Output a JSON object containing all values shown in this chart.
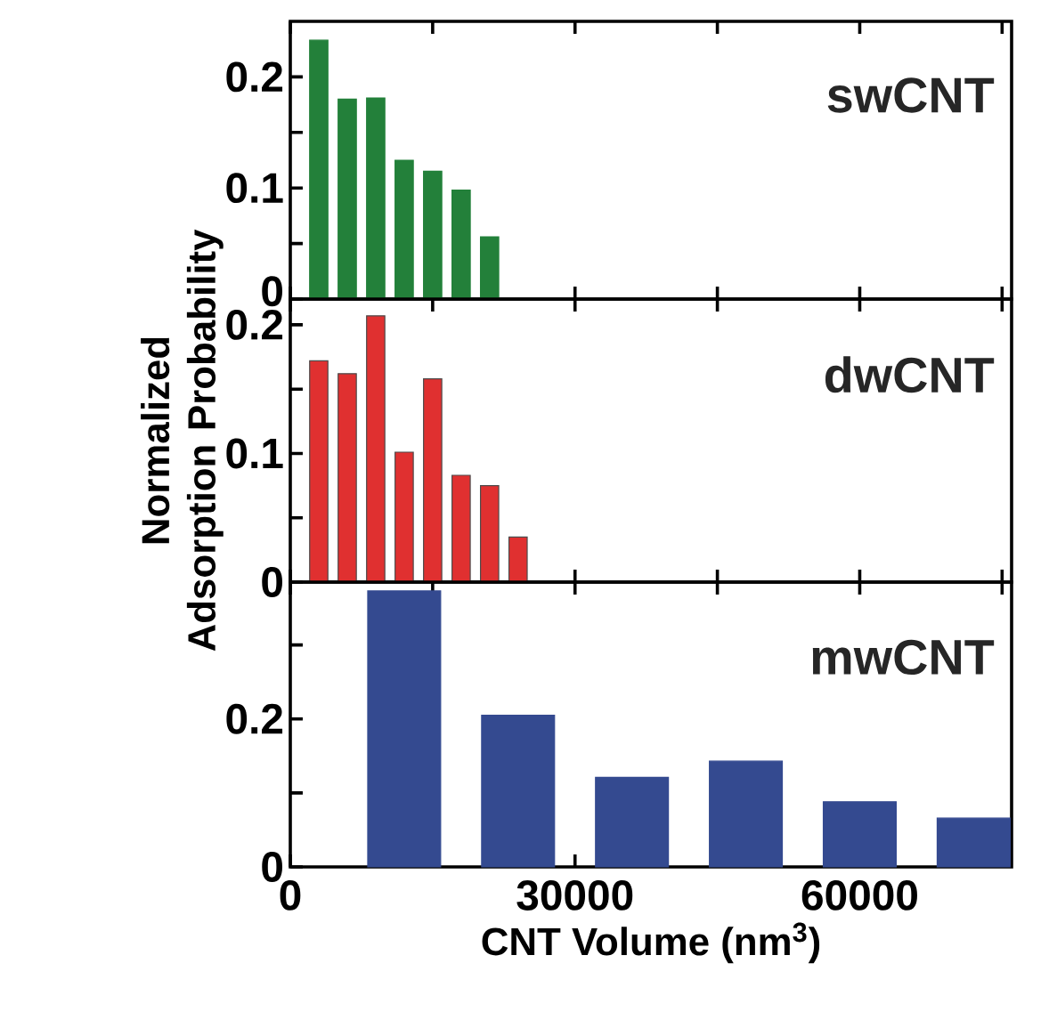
{
  "chart_data": [
    {
      "type": "bar",
      "x": [
        3000,
        6000,
        9000,
        12000,
        15000,
        18000,
        21000
      ],
      "series": [
        {
          "name": "swCNT",
          "color": "#23803a",
          "values": [
            0.233,
            0.18,
            0.181,
            0.125,
            0.115,
            0.098,
            0.056
          ]
        }
      ],
      "xlim": [
        0,
        76000
      ],
      "ylim": [
        0,
        0.25
      ],
      "xticks": [
        0,
        {
          "value": 15000,
          "label": null
        },
        30000,
        {
          "value": 45000,
          "label": null
        },
        60000,
        {
          "value": 75000,
          "label": null
        }
      ],
      "yticks": [
        0,
        {
          "value": 0.05,
          "label": null
        },
        0.1,
        {
          "value": 0.15,
          "label": null
        },
        0.2
      ],
      "tick_labels": "y"
    },
    {
      "type": "bar",
      "x": [
        3000,
        6000,
        9000,
        12000,
        15000,
        18000,
        21000,
        24000
      ],
      "series": [
        {
          "name": "dwCNT",
          "color": "#e03030",
          "values": [
            0.172,
            0.162,
            0.207,
            0.101,
            0.158,
            0.083,
            0.075,
            0.035
          ]
        }
      ],
      "xlim": [
        0,
        76000
      ],
      "ylim": [
        0,
        0.22
      ],
      "xticks": [
        0,
        {
          "value": 15000,
          "label": null
        },
        30000,
        {
          "value": 45000,
          "label": null
        },
        60000,
        {
          "value": 75000,
          "label": null
        }
      ],
      "yticks": [
        0,
        {
          "value": 0.05,
          "label": null
        },
        0.1,
        {
          "value": 0.15,
          "label": null
        },
        0.2
      ],
      "ylabel": "Normalized Adsorption Probability",
      "tick_labels": "y"
    },
    {
      "type": "bar",
      "x": [
        12000,
        24000,
        36000,
        48000,
        60000,
        72000
      ],
      "series": [
        {
          "name": "mwCNT",
          "color": "#344a90",
          "values": [
            0.373,
            0.205,
            0.121,
            0.143,
            0.088,
            0.066
          ]
        }
      ],
      "xlim": [
        0,
        76000
      ],
      "ylim": [
        0,
        0.385
      ],
      "xticks": [
        0,
        {
          "value": 15000,
          "label": null
        },
        30000,
        {
          "value": 45000,
          "label": null
        },
        60000,
        {
          "value": 75000,
          "label": null
        }
      ],
      "yticks": [
        0,
        {
          "value": 0.1,
          "label": null
        },
        0.2,
        {
          "value": 0.3,
          "label": null
        }
      ],
      "xlabel": "CNT Volume (nm$^{3}$)"
    }
  ]
}
